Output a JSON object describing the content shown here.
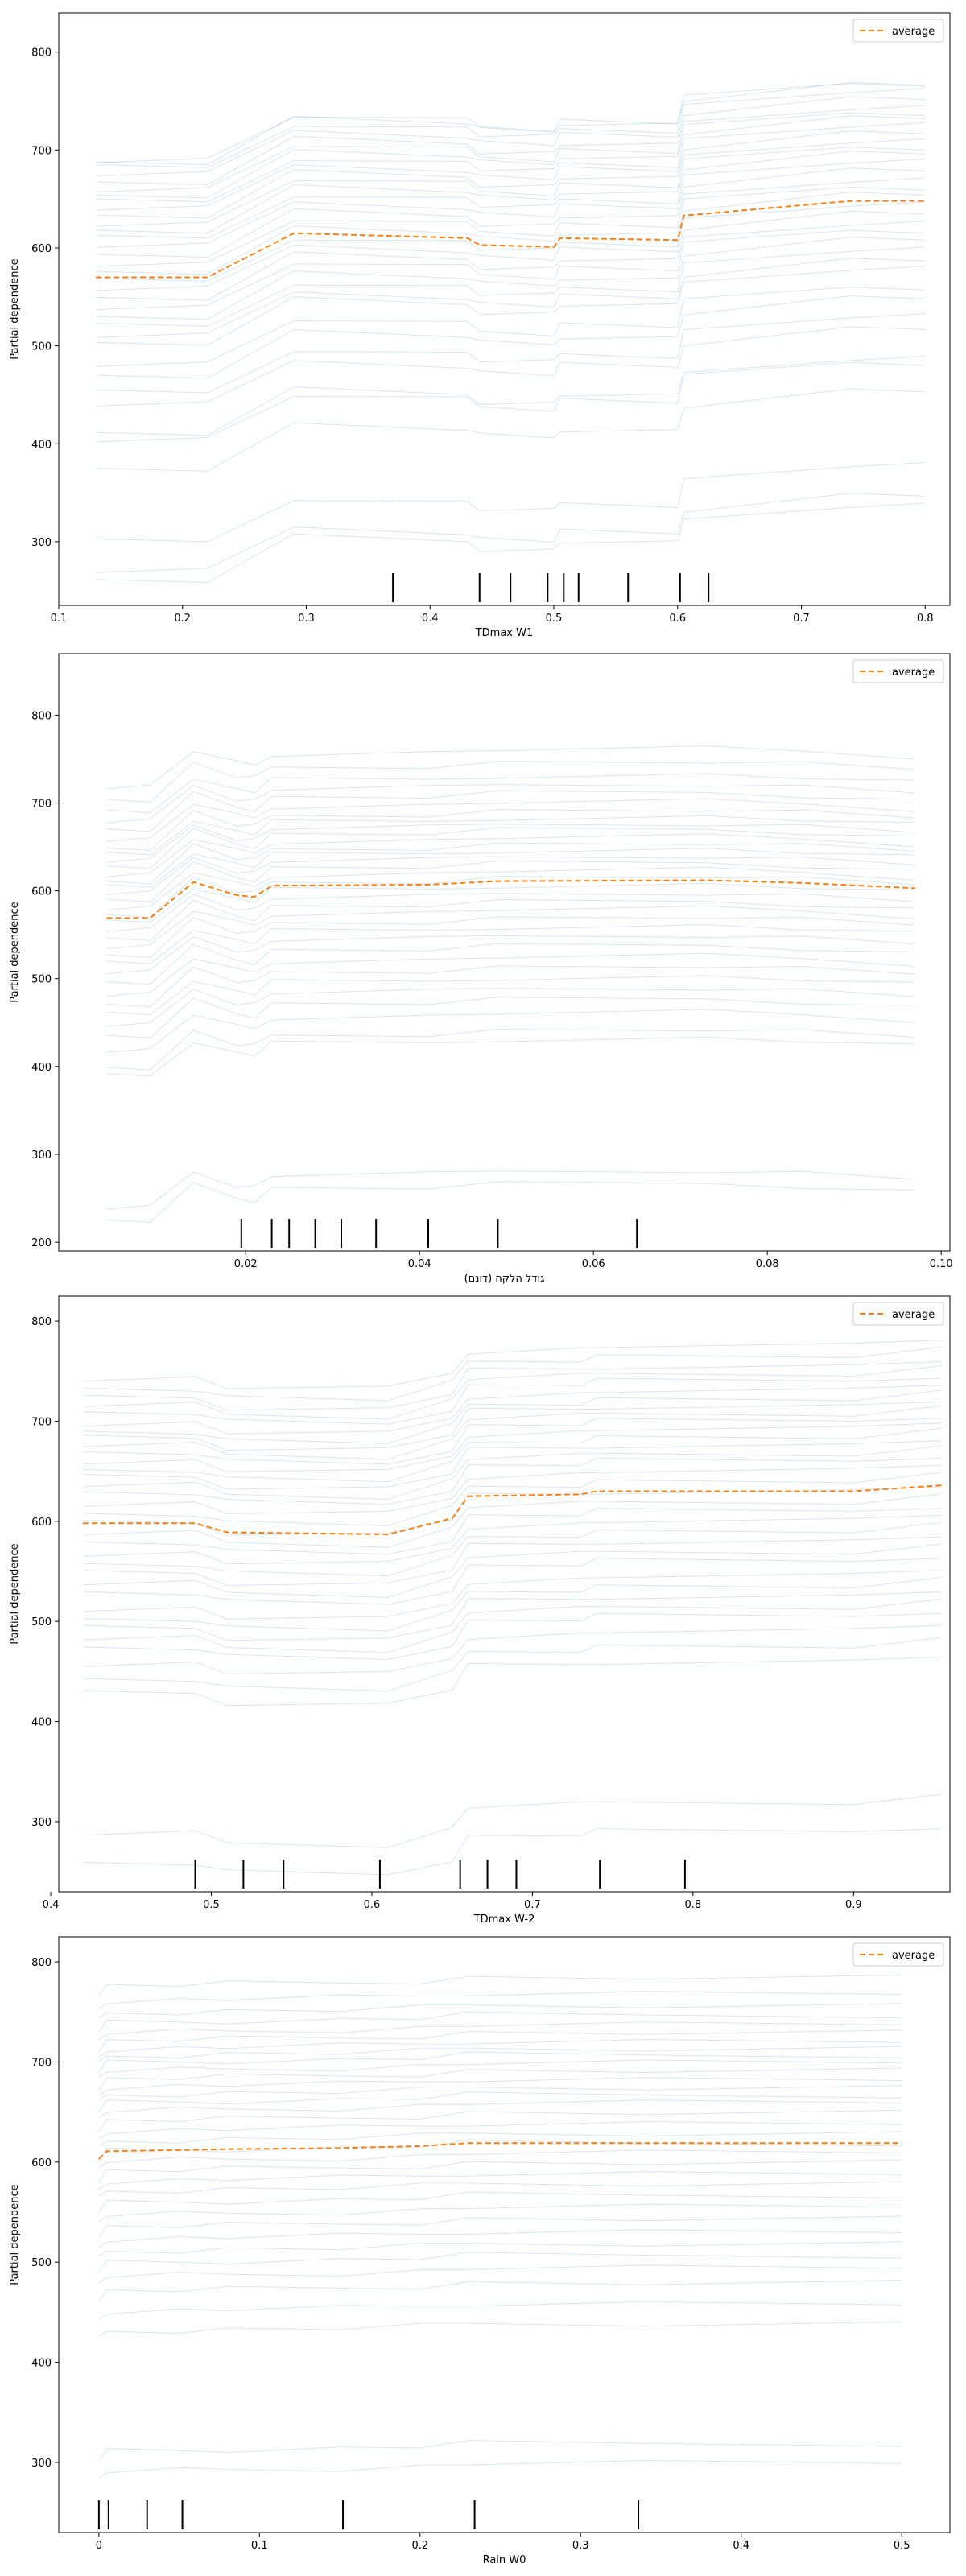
{
  "chart_data": [
    {
      "type": "line",
      "xlabel": "TDmax W1",
      "ylabel": "Partial dependence",
      "xlim": [
        0.1,
        0.82
      ],
      "ylim": [
        235,
        840
      ],
      "xticks": [
        0.1,
        0.2,
        0.3,
        0.4,
        0.5,
        0.6,
        0.7,
        0.8
      ],
      "yticks": [
        300,
        400,
        500,
        600,
        700,
        800
      ],
      "legend": {
        "entries": [
          "average"
        ],
        "placement": "top-right"
      },
      "grid": false,
      "x": [
        0.13,
        0.22,
        0.29,
        0.43,
        0.44,
        0.5,
        0.505,
        0.6,
        0.605,
        0.74,
        0.8
      ],
      "series": [
        {
          "name": "average",
          "values": [
            570,
            570,
            615,
            610,
            603,
            601,
            610,
            608,
            633,
            648,
            648
          ]
        }
      ],
      "ice_offsets": [
        120,
        118,
        112,
        105,
        96,
        90,
        84,
        77,
        70,
        62,
        55,
        48,
        40,
        32,
        22,
        14,
        6,
        -4,
        -12,
        -22,
        -30,
        -40,
        -50,
        -60,
        -68,
        -88,
        -100,
        -118,
        -130,
        -160,
        -165,
        -195,
        -270,
        -300,
        -310
      ],
      "rug": [
        0.37,
        0.44,
        0.465,
        0.495,
        0.508,
        0.52,
        0.56,
        0.602,
        0.625
      ]
    },
    {
      "type": "line",
      "xlabel": "גודל הלקה (דונם)",
      "ylabel": "Partial dependence",
      "xlim": [
        -0.0015,
        0.101
      ],
      "ylim": [
        190,
        870
      ],
      "xticks": [
        0.02,
        0.04,
        0.06,
        0.08,
        0.1
      ],
      "xtick_labels": [
        "0.02",
        "0.04",
        "0.06",
        "0.08",
        "0.10"
      ],
      "yticks": [
        200,
        300,
        400,
        500,
        600,
        700,
        800
      ],
      "legend": {
        "entries": [
          "average"
        ],
        "placement": "top-right"
      },
      "grid": false,
      "x": [
        0.004,
        0.009,
        0.014,
        0.019,
        0.021,
        0.023,
        0.041,
        0.049,
        0.073,
        0.084,
        0.097
      ],
      "series": [
        {
          "name": "average",
          "values": [
            569,
            569,
            610,
            595,
            593,
            606,
            607,
            611,
            612,
            609,
            603
          ]
        }
      ],
      "ice_offsets": [
        150,
        135,
        120,
        110,
        100,
        90,
        80,
        72,
        65,
        58,
        50,
        42,
        35,
        28,
        20,
        12,
        4,
        -5,
        -14,
        -24,
        -32,
        -42,
        -52,
        -62,
        -74,
        -86,
        -98,
        -110,
        -122,
        -135,
        -150,
        -170,
        -180,
        -330,
        -345
      ],
      "rug": [
        0.0195,
        0.023,
        0.025,
        0.028,
        0.031,
        0.035,
        0.041,
        0.049,
        0.065
      ]
    },
    {
      "type": "line",
      "xlabel": "TDmax W-2",
      "ylabel": "Partial dependence",
      "xlim": [
        0.405,
        0.96
      ],
      "ylim": [
        230,
        825
      ],
      "xticks": [
        0.4,
        0.5,
        0.6,
        0.7,
        0.8,
        0.9
      ],
      "yticks": [
        300,
        400,
        500,
        600,
        700,
        800
      ],
      "legend": {
        "entries": [
          "average"
        ],
        "placement": "top-right"
      },
      "grid": false,
      "x": [
        0.42,
        0.49,
        0.51,
        0.61,
        0.65,
        0.66,
        0.73,
        0.74,
        0.9,
        0.955
      ],
      "series": [
        {
          "name": "average",
          "values": [
            598,
            598,
            589,
            587,
            603,
            625,
            627,
            630,
            630,
            636
          ]
        }
      ],
      "ice_offsets": [
        145,
        135,
        125,
        118,
        110,
        100,
        92,
        85,
        78,
        70,
        62,
        54,
        46,
        38,
        30,
        20,
        10,
        0,
        -10,
        -20,
        -30,
        -40,
        -50,
        -60,
        -70,
        -85,
        -95,
        -105,
        -115,
        -125,
        -140,
        -155,
        -170,
        -310,
        -340
      ],
      "rug": [
        0.49,
        0.52,
        0.545,
        0.605,
        0.655,
        0.672,
        0.69,
        0.742,
        0.795
      ]
    },
    {
      "type": "line",
      "xlabel": "Rain W0",
      "ylabel": "Partial dependence",
      "xlim": [
        -0.025,
        0.53
      ],
      "ylim": [
        230,
        825
      ],
      "xticks": [
        0.0,
        0.1,
        0.2,
        0.3,
        0.4,
        0.5
      ],
      "yticks": [
        300,
        400,
        500,
        600,
        700,
        800
      ],
      "legend": {
        "entries": [
          "average"
        ],
        "placement": "top-right"
      },
      "grid": false,
      "x": [
        0.0,
        0.005,
        0.05,
        0.08,
        0.15,
        0.2,
        0.23,
        0.34,
        0.5
      ],
      "series": [
        {
          "name": "average",
          "values": [
            603,
            611,
            612,
            613,
            614,
            616,
            619,
            619,
            619
          ]
        }
      ],
      "ice_offsets": [
        165,
        150,
        138,
        128,
        118,
        110,
        102,
        95,
        88,
        80,
        72,
        64,
        56,
        48,
        40,
        30,
        20,
        10,
        0,
        -10,
        -20,
        -30,
        -40,
        -52,
        -64,
        -76,
        -88,
        -100,
        -112,
        -125,
        -140,
        -160,
        -180,
        -300,
        -320
      ],
      "rug": [
        0.0,
        0.006,
        0.03,
        0.052,
        0.152,
        0.234,
        0.336
      ]
    }
  ]
}
